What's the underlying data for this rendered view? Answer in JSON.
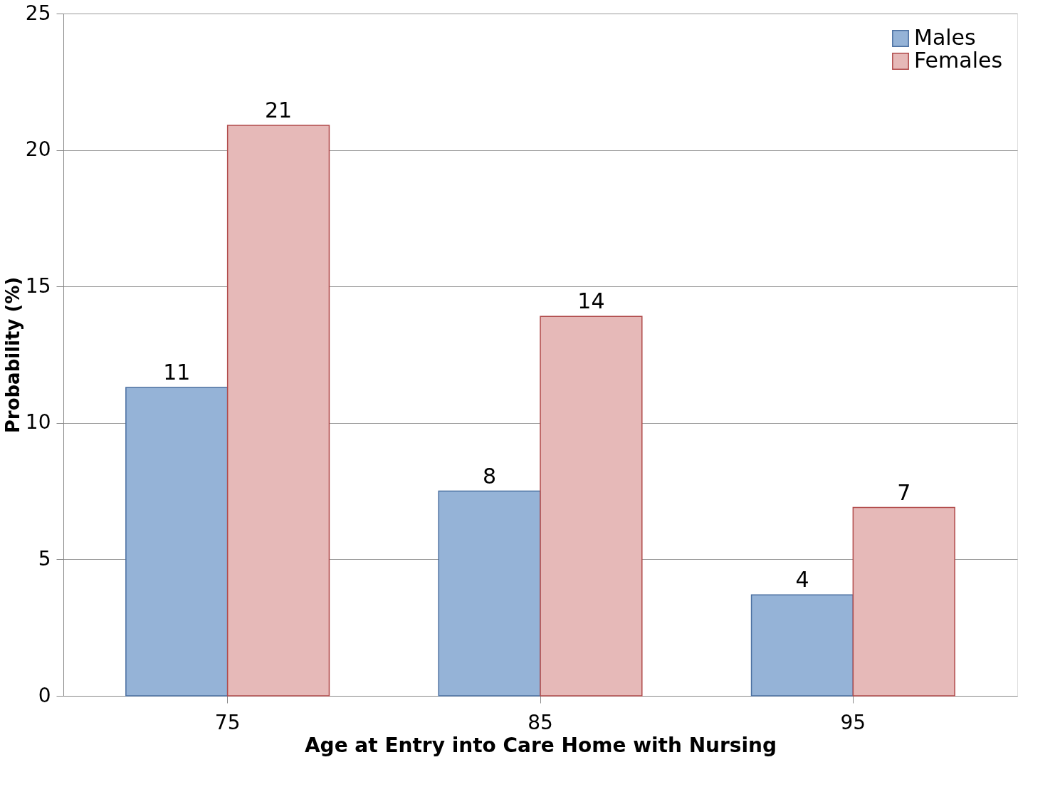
{
  "chart_data": {
    "type": "bar",
    "xlabel": "Age at Entry into Care Home with Nursing",
    "ylabel": "Probability (%)",
    "categories": [
      "75",
      "85",
      "95"
    ],
    "series": [
      {
        "name": "Males",
        "color": "#95b3d7",
        "values": [
          11.3,
          7.5,
          3.7
        ],
        "value_labels": [
          "11",
          "8",
          "4"
        ]
      },
      {
        "name": "Females",
        "color": "#e6b9b8",
        "values": [
          20.9,
          13.9,
          6.9
        ],
        "value_labels": [
          "21",
          "14",
          "7"
        ]
      }
    ],
    "ylim": [
      0,
      25
    ],
    "yticks": [
      0,
      5,
      10,
      15,
      20,
      25
    ],
    "grid": "y",
    "legend": "top right"
  }
}
